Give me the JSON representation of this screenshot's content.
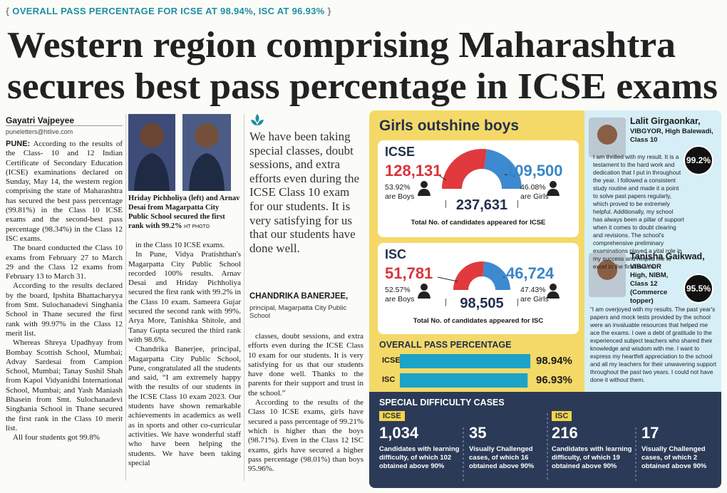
{
  "kicker": "OVERALL PASS PERCENTAGE FOR ICSE AT 98.94%, ISC AT 96.93%",
  "headline": [
    "Western region comprising Maharashtra",
    "secures best pass percentage in ICSE exams"
  ],
  "byline": {
    "author": "Gayatri Vajpeyee",
    "email": "puneletters@htlive.com"
  },
  "column1": {
    "dateline": "PUNE:",
    "paragraphs": [
      "According to the results of the Class- 10 and 12 Indian Certificate of Secondary Education (ICSE) examinations declared on Sunday, May 14, the western region comprising the state of Maharashtra has secured the best pass percentage (99.81%) in the Class 10 ICSE exams and the second-best pass percentage (98.34%) in the Class 12 ISC exams.",
      "The board conducted the Class 10 exams from February 27 to March 29 and the Class 12 exams from February 13 to March 31.",
      "According to the results declared by the board, Ipshita Bhattacharyya from Smt. Sulochanadevi Singhania School in Thane secured the first rank with 99.97% in the Class 12 merit list.",
      "Whereas Shreya Upadhyay from Bombay Scottish School, Mumbai; Advay Sardesai from Campion School, Mumbai; Tanay Sushil Shah from Kapol Vidyanidhi International School, Mumbai; and Yash Maniash Bhasein from Smt. Sulochanadevi Singhania School in Thane secured the first rank in the Class 10 merit list.",
      "All four students got 99.8%"
    ]
  },
  "photo": {
    "caption": "Hriday Pichholiya (left) and Arnav Desai from Magarpatta City Public School secured the first rank with 99.2%",
    "credit": "HT PHOTO"
  },
  "column2": {
    "paragraphs": [
      "in the Class 10 ICSE exams.",
      "In Pune, Vidya Pratishthan's Magarpatta City Public School recorded 100% results. Arnav Desai and Hriday Pichholiya secured the first rank with 99.2% in the Class 10 exam. Sameera Gujar secured the second rank with 99%. Arya More, Tanishka Shitole, and Tanay Gupta secured the third rank with 98.6%.",
      "Chandrika Banerjee, principal, Magarpatta City Public School, Pune, congratulated all the students and said, “I am extremely happy with the results of our students in the ICSE Class 10 exam 2023. Our students have shown remarkable achievements in academics as well as in sports and other co-curricular activities. We have wonderful staff who have been helping the students. We have been taking special"
    ]
  },
  "quote": {
    "text": "We have been taking special classes, doubt sessions, and extra efforts even during the ICSE Class 10 exam for our students. It is very satisfying for us that our students have done well.",
    "author": "CHANDRIKA BANERJEE,",
    "role": "principal, Magarpatta City Public School"
  },
  "column3": {
    "paragraphs": [
      "classes, doubt sessions, and extra efforts even during the ICSE Class 10 exam for our students. It is very satisfying for us that our students have done well. Thanks to the parents for their support and trust in the school.”",
      "According to the results of the Class 10 ICSE exams, girls have secured a pass percentage of 99.21% which is higher than the boys (98.71%). Even in the Class 12 ISC exams, girls have secured a higher pass percentage (98.01%) than boys 95.96%."
    ]
  },
  "infographic": {
    "title": "Girls outshine boys",
    "exams": [
      {
        "label": "ICSE",
        "boys": "128,131",
        "boys_share": 53.92,
        "boys_share_label": "53.92%",
        "boys_text": "are Boys",
        "girls": "109,500",
        "girls_share": 46.08,
        "girls_share_label": "46.08%",
        "girls_text": "are Girls",
        "total": "237,631",
        "caption": "Total No. of candidates appeared for ICSE"
      },
      {
        "label": "ISC",
        "boys": "51,781",
        "boys_share": 52.57,
        "boys_share_label": "52.57%",
        "boys_text": "are Boys",
        "girls": "46,724",
        "girls_share": 47.43,
        "girls_share_label": "47.43%",
        "girls_text": "are Girls",
        "total": "98,505",
        "caption": "Total No. of candidates appeared for ISC"
      }
    ],
    "pass": {
      "title": "OVERALL PASS PERCENTAGE",
      "rows": [
        {
          "label": "ICSE",
          "value": 98.94,
          "value_label": "98.94%"
        },
        {
          "label": "ISC",
          "value": 96.93,
          "value_label": "96.93%"
        }
      ]
    },
    "profiles": [
      {
        "name": "Lalit Girgaonkar,",
        "details": "VIBGYOR, High Balewadi, Class 10",
        "score": "99.2%",
        "text": "I am thrilled with my result. It is a testament to the hard work and dedication that I put in throughout the year. I followed a consistent study routine and made it a point to solve past papers regularly, which proved to be extremely helpful. Additionally, my school has always been a pillar of support when it comes to doubt clearing and revisions. The school's comprehensive preliminary examinations played a vital role in my success and helped me to excel in the final exams."
      },
      {
        "name": "Tanisha Gaikwad,",
        "details": "VIBGYOR High, NIBM, Class 12 (Commerce topper)",
        "score": "95.5%",
        "text": "“I am overjoyed with my results. The past year's papers and mock tests provided by the school were an invaluable resources that helped me ace the exams. I owe a debt of gratitude to the experienced subject teachers who shared their knowledge and wisdom with me. I want to express my heartfelt appreciation to the school and all my teachers for their unwavering support throughout the past two years. I could not have done it without them."
      }
    ],
    "special": {
      "title": "SPECIAL DIFFICULTY CASES",
      "groups": [
        {
          "label": "ICSE",
          "items": [
            {
              "number": "1,034",
              "text": "Candidates with learning difficulty, of which 102 obtained above 90%"
            },
            {
              "number": "35",
              "text": "Visually Challenged cases, of which 16 obtained above 90%"
            }
          ]
        },
        {
          "label": "ISC",
          "items": [
            {
              "number": "216",
              "text": "Candidates with learning difficulty, of which 19 obtained above 90%"
            },
            {
              "number": "17",
              "text": "Visually Challenged cases, of which 2 obtained above 90%"
            }
          ]
        }
      ]
    }
  }
}
